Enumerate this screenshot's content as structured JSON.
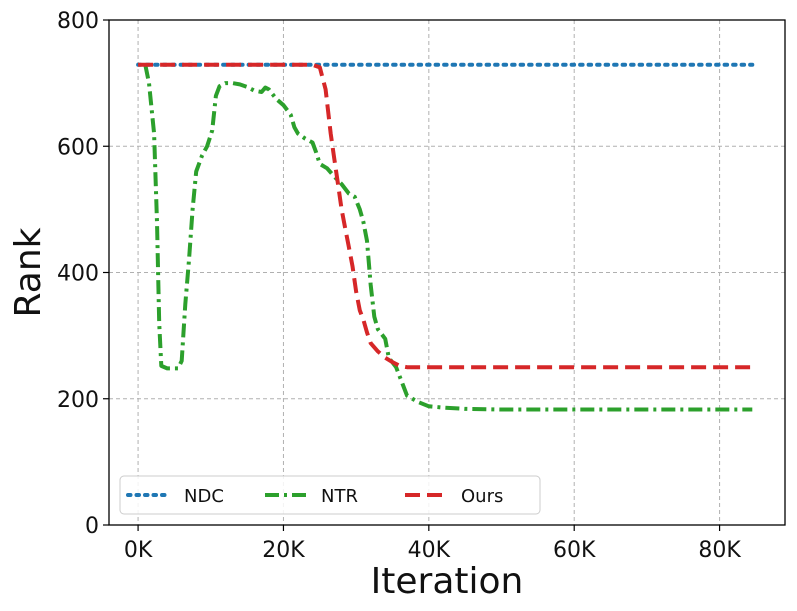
{
  "chart_data": {
    "type": "line",
    "xlabel": "Iteration",
    "ylabel": "Rank",
    "xlim": [
      -4000,
      89000
    ],
    "ylim": [
      0,
      800
    ],
    "xticks": [
      0,
      20000,
      40000,
      60000,
      80000
    ],
    "xtick_labels": [
      "0K",
      "20K",
      "40K",
      "60K",
      "80K"
    ],
    "yticks": [
      0,
      200,
      400,
      600,
      800
    ],
    "ytick_labels": [
      "0",
      "200",
      "400",
      "600",
      "800"
    ],
    "grid": true,
    "legend_position": "lower-left",
    "series": [
      {
        "name": "NDC",
        "style": "dotted",
        "color": "#1f77b4",
        "points": [
          [
            0,
            729
          ],
          [
            84500,
            729
          ]
        ]
      },
      {
        "name": "NTR",
        "style": "dashdot",
        "color": "#2ca02c",
        "points": [
          [
            1000,
            729
          ],
          [
            1500,
            700
          ],
          [
            2200,
            620
          ],
          [
            2600,
            480
          ],
          [
            2900,
            320
          ],
          [
            3200,
            252
          ],
          [
            4000,
            248
          ],
          [
            5500,
            248
          ],
          [
            6000,
            260
          ],
          [
            6500,
            350
          ],
          [
            7000,
            420
          ],
          [
            7500,
            500
          ],
          [
            8000,
            560
          ],
          [
            8800,
            585
          ],
          [
            9500,
            600
          ],
          [
            10200,
            625
          ],
          [
            10700,
            680
          ],
          [
            11200,
            695
          ],
          [
            12000,
            700
          ],
          [
            13000,
            700
          ],
          [
            14000,
            698
          ],
          [
            15000,
            694
          ],
          [
            16000,
            688
          ],
          [
            17000,
            686
          ],
          [
            17500,
            693
          ],
          [
            18000,
            690
          ],
          [
            19000,
            675
          ],
          [
            20000,
            665
          ],
          [
            21000,
            650
          ],
          [
            21500,
            630
          ],
          [
            22000,
            620
          ],
          [
            23000,
            612
          ],
          [
            24000,
            606
          ],
          [
            24500,
            590
          ],
          [
            25000,
            572
          ],
          [
            26000,
            565
          ],
          [
            27000,
            552
          ],
          [
            28000,
            540
          ],
          [
            29000,
            525
          ],
          [
            29800,
            520
          ],
          [
            30500,
            500
          ],
          [
            31000,
            480
          ],
          [
            31500,
            450
          ],
          [
            32000,
            380
          ],
          [
            32500,
            330
          ],
          [
            33000,
            310
          ],
          [
            34000,
            295
          ],
          [
            34500,
            265
          ],
          [
            35500,
            250
          ],
          [
            36500,
            220
          ],
          [
            37000,
            205
          ],
          [
            38500,
            195
          ],
          [
            40000,
            188
          ],
          [
            42000,
            186
          ],
          [
            45000,
            184
          ],
          [
            50000,
            183
          ],
          [
            60000,
            183
          ],
          [
            70000,
            183
          ],
          [
            80000,
            183
          ],
          [
            84500,
            183
          ]
        ]
      },
      {
        "name": "Ours",
        "style": "dashed",
        "color": "#d62728",
        "points": [
          [
            0,
            729
          ],
          [
            24000,
            729
          ],
          [
            25000,
            725
          ],
          [
            25800,
            690
          ],
          [
            26500,
            620
          ],
          [
            27000,
            580
          ],
          [
            27500,
            540
          ],
          [
            28000,
            500
          ],
          [
            28500,
            470
          ],
          [
            29000,
            440
          ],
          [
            29500,
            410
          ],
          [
            30000,
            370
          ],
          [
            30500,
            340
          ],
          [
            31000,
            325
          ],
          [
            31500,
            305
          ],
          [
            32000,
            288
          ],
          [
            33000,
            275
          ],
          [
            34000,
            265
          ],
          [
            35000,
            258
          ],
          [
            36000,
            252
          ],
          [
            37000,
            250
          ],
          [
            40000,
            250
          ],
          [
            60000,
            250
          ],
          [
            84500,
            250
          ]
        ]
      }
    ]
  }
}
